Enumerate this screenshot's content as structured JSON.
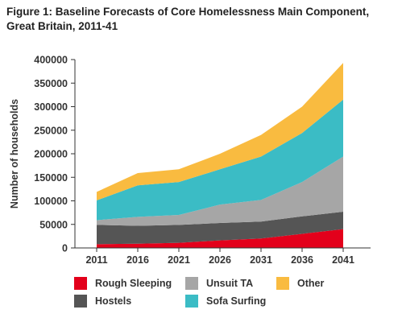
{
  "title_line1": "Figure 1: Baseline Forecasts of Core Homelessness Main Component,",
  "title_line2": "Great Britain, 2011-41",
  "chart_data": {
    "type": "area",
    "stacked": true,
    "title": "Figure 1: Baseline Forecasts of Core Homelessness Main Component, Great Britain, 2011-41",
    "xlabel": "",
    "ylabel": "Number of households",
    "x": [
      "2011",
      "2016",
      "2021",
      "2026",
      "2031",
      "2036",
      "2041"
    ],
    "ylim": [
      0,
      400000
    ],
    "yticks": [
      0,
      50000,
      100000,
      150000,
      200000,
      250000,
      300000,
      350000,
      400000
    ],
    "ytick_labels": [
      "0",
      "50000",
      "100000",
      "150000",
      "200000",
      "250000",
      "300000",
      "350000",
      "400000"
    ],
    "grid": false,
    "legend_position": "bottom",
    "series": [
      {
        "name": "Rough Sleeping",
        "color": "#e3001b",
        "values": [
          8000,
          9000,
          11000,
          16000,
          20000,
          30000,
          40000
        ]
      },
      {
        "name": "Hostels",
        "color": "#555555",
        "values": [
          41000,
          38000,
          38000,
          37000,
          36000,
          37000,
          37000
        ]
      },
      {
        "name": "Unsuit TA",
        "color": "#a6a6a6",
        "values": [
          10000,
          19000,
          21000,
          39000,
          46000,
          73000,
          117000
        ]
      },
      {
        "name": "Sofa Surfing",
        "color": "#3bbcc5",
        "values": [
          42000,
          67000,
          70000,
          75000,
          92000,
          104000,
          121000
        ]
      },
      {
        "name": "Other",
        "color": "#f9bb40",
        "values": [
          18000,
          26000,
          27000,
          33000,
          46000,
          56000,
          78000
        ]
      }
    ]
  }
}
